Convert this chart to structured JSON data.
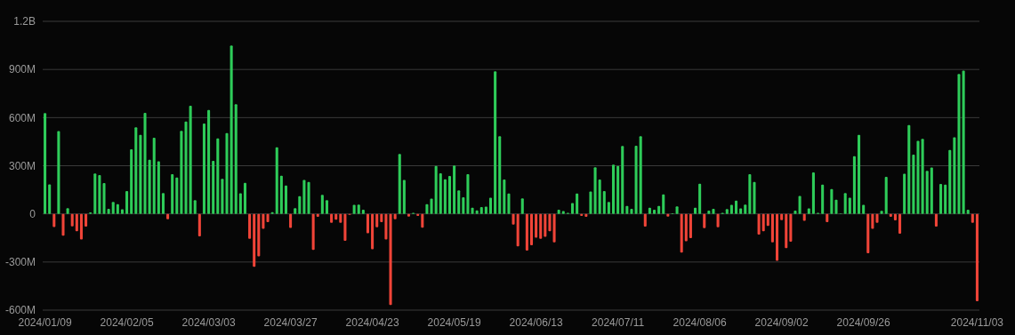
{
  "chart_data": {
    "type": "bar",
    "stacked": true,
    "categories": [
      "2024/01/09",
      null,
      null,
      null,
      null,
      null,
      null,
      null,
      null,
      null,
      null,
      null,
      null,
      null,
      null,
      null,
      null,
      null,
      "2024/02/05",
      null,
      null,
      null,
      null,
      null,
      null,
      null,
      null,
      null,
      null,
      null,
      null,
      null,
      null,
      null,
      null,
      null,
      "2024/03/03",
      null,
      null,
      null,
      null,
      null,
      null,
      null,
      null,
      null,
      null,
      null,
      null,
      null,
      null,
      null,
      null,
      null,
      "2024/03/27",
      null,
      null,
      null,
      null,
      null,
      null,
      null,
      null,
      null,
      null,
      null,
      null,
      null,
      null,
      null,
      null,
      null,
      "2024/04/23",
      null,
      null,
      null,
      null,
      null,
      null,
      null,
      null,
      null,
      null,
      null,
      null,
      null,
      null,
      null,
      null,
      null,
      "2024/05/19",
      null,
      null,
      null,
      null,
      null,
      null,
      null,
      null,
      null,
      null,
      null,
      null,
      null,
      null,
      null,
      null,
      null,
      "2024/06/13",
      null,
      null,
      null,
      null,
      null,
      null,
      null,
      null,
      null,
      null,
      null,
      null,
      null,
      null,
      null,
      null,
      null,
      "2024/07/11",
      null,
      null,
      null,
      null,
      null,
      null,
      null,
      null,
      null,
      null,
      null,
      null,
      null,
      null,
      null,
      null,
      null,
      "2024/08/06",
      null,
      null,
      null,
      null,
      null,
      null,
      null,
      null,
      null,
      null,
      null,
      null,
      null,
      null,
      null,
      null,
      null,
      "2024/09/02",
      null,
      null,
      null,
      null,
      null,
      null,
      null,
      null,
      null,
      null,
      null,
      null,
      null,
      null,
      null,
      null,
      null,
      "2024/09/26",
      null,
      null,
      null,
      null,
      null,
      null,
      null,
      null,
      null,
      null,
      null,
      null,
      null,
      null,
      null,
      null,
      null,
      null,
      null,
      null,
      null,
      null,
      null,
      null,
      "2024/11/03"
    ],
    "series": [
      {
        "color": "#2ecc59",
        "values": [
          628000000.0,
          184000000.0,
          null,
          516000000.0,
          null,
          35000000.0,
          null,
          null,
          null,
          null,
          9000000.0,
          251000000.0,
          242000000.0,
          192000000.0,
          32000000.0,
          75000000.0,
          61000000.0,
          28000000.0,
          142000000.0,
          402000000.0,
          540000000.0,
          492000000.0,
          630000000.0,
          337000000.0,
          475000000.0,
          328000000.0,
          130000000.0,
          null,
          248000000.0,
          227000000.0,
          518000000.0,
          576000000.0,
          674000000.0,
          86000000.0,
          null,
          563000000.0,
          648000000.0,
          330000000.0,
          471000000.0,
          218000000.0,
          503000000.0,
          1049000000.0,
          684000000.0,
          129000000.0,
          194000000.0,
          null,
          null,
          null,
          null,
          null,
          11000000.0,
          415000000.0,
          238000000.0,
          177000000.0,
          null,
          35000000.0,
          110000000.0,
          211000000.0,
          199000000.0,
          null,
          null,
          119000000.0,
          86000000.0,
          null,
          null,
          null,
          null,
          null,
          56000000.0,
          58000000.0,
          26000000.0,
          null,
          null,
          null,
          null,
          null,
          null,
          null,
          374000000.0,
          212000000.0,
          null,
          7000000.0,
          null,
          null,
          60000000.0,
          95000000.0,
          298000000.0,
          253000000.0,
          216000000.0,
          237000000.0,
          302000000.0,
          147000000.0,
          104000000.0,
          248000000.0,
          39000000.0,
          22000000.0,
          43000000.0,
          45000000.0,
          101000000.0,
          889000000.0,
          484000000.0,
          214000000.0,
          127000000.0,
          null,
          null,
          97000000.0,
          null,
          null,
          null,
          null,
          null,
          null,
          null,
          26000000.0,
          17000000.0,
          7000000.0,
          67000000.0,
          127000000.0,
          null,
          null,
          140000000.0,
          291000000.0,
          214000000.0,
          142000000.0,
          75000000.0,
          307000000.0,
          298000000.0,
          423000000.0,
          50000000.0,
          32000000.0,
          425000000.0,
          484000000.0,
          null,
          39000000.0,
          26000000.0,
          50000000.0,
          121000000.0,
          null,
          4000000.0,
          47000000.0,
          null,
          null,
          null,
          39000000.0,
          188000000.0,
          null,
          20000000.0,
          32000000.0,
          null,
          6000000.0,
          30000000.0,
          56000000.0,
          82000000.0,
          34000000.0,
          58000000.0,
          248000000.0,
          199000000.0,
          null,
          null,
          null,
          null,
          null,
          null,
          null,
          null,
          20000000.0,
          112000000.0,
          null,
          34000000.0,
          259000000.0,
          7000000.0,
          183000000.0,
          null,
          155000000.0,
          88000000.0,
          2000000.0,
          130000000.0,
          101000000.0,
          360000000.0,
          492000000.0,
          56000000.0,
          null,
          null,
          null,
          19000000.0,
          231000000.0,
          null,
          null,
          null,
          250000000.0,
          553000000.0,
          369000000.0,
          455000000.0,
          468000000.0,
          268000000.0,
          289000000.0,
          null,
          186000000.0,
          183000000.0,
          399000000.0,
          477000000.0,
          872000000.0,
          892000000.0,
          26000000.0,
          null,
          null
        ]
      },
      {
        "color": "#f04438",
        "values": [
          null,
          null,
          -82000000.0,
          null,
          -136000000.0,
          null,
          -78000000.0,
          -108000000.0,
          -160000000.0,
          -80000000.0,
          null,
          null,
          null,
          null,
          null,
          null,
          null,
          null,
          null,
          null,
          null,
          null,
          null,
          null,
          null,
          null,
          null,
          -34000000.0,
          null,
          null,
          null,
          null,
          null,
          null,
          -140000000.0,
          null,
          null,
          null,
          null,
          null,
          null,
          null,
          null,
          null,
          null,
          -155000000.0,
          -330000000.0,
          -265000000.0,
          -93000000.0,
          -52000000.0,
          null,
          null,
          null,
          null,
          -88000000.0,
          null,
          null,
          null,
          null,
          -225000000.0,
          -19000000.0,
          null,
          null,
          -56000000.0,
          -37000000.0,
          -56000000.0,
          -168000000.0,
          -6000000.0,
          null,
          null,
          null,
          -121000000.0,
          -220000000.0,
          -84000000.0,
          -52000000.0,
          -160000000.0,
          -568000000.0,
          -34000000.0,
          null,
          null,
          -17000000.0,
          null,
          -13000000.0,
          -86000000.0,
          null,
          null,
          null,
          null,
          null,
          null,
          null,
          null,
          null,
          null,
          null,
          null,
          null,
          null,
          null,
          null,
          null,
          null,
          null,
          -67000000.0,
          -203000000.0,
          null,
          -229000000.0,
          -196000000.0,
          -149000000.0,
          -155000000.0,
          -143000000.0,
          -108000000.0,
          -177000000.0,
          null,
          null,
          null,
          null,
          null,
          -13000000.0,
          -19000000.0,
          null,
          null,
          null,
          null,
          null,
          null,
          null,
          null,
          null,
          null,
          null,
          null,
          -80000000.0,
          null,
          null,
          null,
          null,
          -17000000.0,
          null,
          null,
          -242000000.0,
          -171000000.0,
          -151000000.0,
          null,
          null,
          -89000000.0,
          null,
          null,
          -84000000.0,
          null,
          null,
          null,
          null,
          null,
          null,
          null,
          null,
          -129000000.0,
          -108000000.0,
          -75000000.0,
          -177000000.0,
          -292000000.0,
          -39000000.0,
          -214000000.0,
          -173000000.0,
          null,
          null,
          -43000000.0,
          null,
          null,
          null,
          null,
          -52000000.0,
          null,
          null,
          null,
          null,
          null,
          null,
          null,
          null,
          -246000000.0,
          -93000000.0,
          -56000000.0,
          null,
          null,
          -19000000.0,
          -41000000.0,
          -123000000.0,
          null,
          null,
          null,
          null,
          null,
          null,
          null,
          -80000000.0,
          null,
          null,
          null,
          null,
          null,
          null,
          null,
          -56000000.0,
          -544000000.0
        ]
      }
    ],
    "ylim": [
      -600000000.0,
      1200000000.0
    ],
    "yticks": [
      {
        "value": -600000000.0,
        "label": "-600M"
      },
      {
        "value": -300000000.0,
        "label": "-300M"
      },
      {
        "value": 0,
        "label": "0"
      },
      {
        "value": 300000000.0,
        "label": "300M"
      },
      {
        "value": 600000000.0,
        "label": "600M"
      },
      {
        "value": 900000000.0,
        "label": "900M"
      },
      {
        "value": 1200000000.0,
        "label": "1.2B"
      }
    ],
    "grid": "y"
  }
}
